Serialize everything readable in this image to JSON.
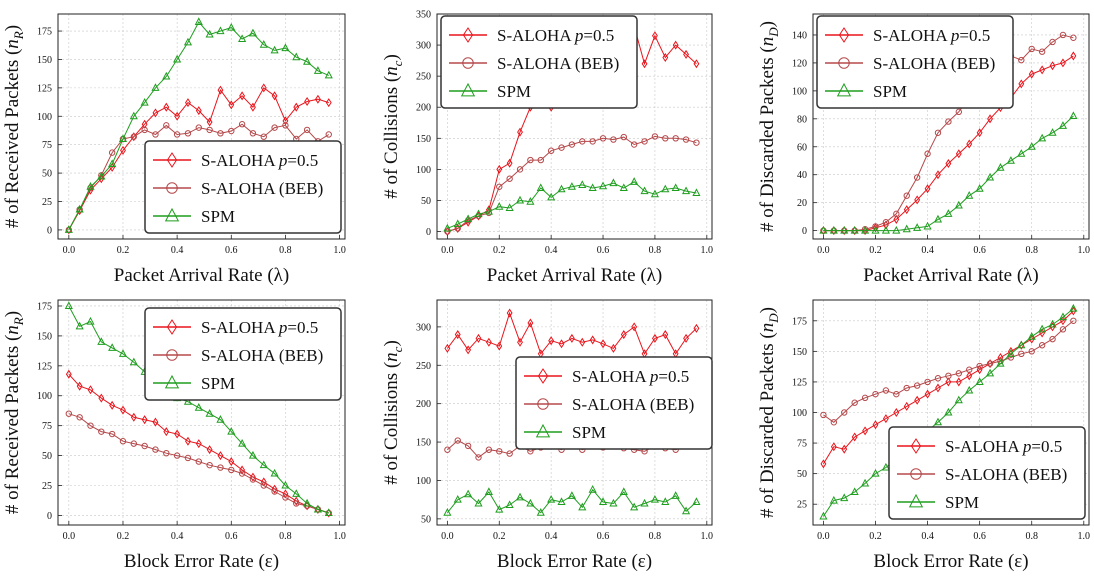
{
  "series_names": [
    "S-ALOHA p=0.5",
    "S-ALOHA (BEB)",
    "SPM"
  ],
  "series_colors": [
    "#e8141b",
    "#b5484a",
    "#1e9e1e"
  ],
  "series_markers": [
    "diamond-icon",
    "circle-icon",
    "triangle-icon"
  ],
  "chart_data": [
    {
      "type": "line",
      "xlabel": "Packet Arrival Rate (λ)",
      "ylabel": "# of Received Packets (n_R)",
      "ylim": [
        -8,
        190
      ],
      "xlim": [
        -0.04,
        1.02
      ],
      "yticks": [
        0,
        25,
        50,
        75,
        100,
        125,
        150,
        175
      ],
      "xticks": [
        0.0,
        0.2,
        0.4,
        0.6,
        0.8,
        1.0
      ],
      "legend": "bottom-right",
      "x": [
        0.0,
        0.04,
        0.08,
        0.12,
        0.16,
        0.2,
        0.24,
        0.28,
        0.32,
        0.36,
        0.4,
        0.44,
        0.48,
        0.52,
        0.56,
        0.6,
        0.64,
        0.68,
        0.72,
        0.76,
        0.8,
        0.84,
        0.88,
        0.92,
        0.96
      ],
      "series": [
        {
          "name": "S-ALOHA p=0.5",
          "values": [
            0,
            17,
            35,
            45,
            55,
            70,
            82,
            93,
            103,
            108,
            100,
            112,
            105,
            95,
            123,
            110,
            118,
            108,
            125,
            118,
            96,
            108,
            113,
            115,
            112
          ]
        },
        {
          "name": "S-ALOHA (BEB)",
          "values": [
            0,
            18,
            37,
            48,
            68,
            80,
            82,
            88,
            84,
            92,
            84,
            85,
            90,
            88,
            85,
            87,
            93,
            85,
            82,
            90,
            92,
            80,
            88,
            78,
            84
          ]
        },
        {
          "name": "SPM",
          "values": [
            0,
            18,
            38,
            47,
            58,
            80,
            100,
            112,
            125,
            135,
            150,
            165,
            183,
            172,
            175,
            178,
            168,
            173,
            163,
            158,
            160,
            152,
            148,
            140,
            136
          ]
        }
      ]
    },
    {
      "type": "line",
      "xlabel": "Packet Arrival Rate (λ)",
      "ylabel": "# of Collisions (n_c)",
      "ylim": [
        -12,
        350
      ],
      "xlim": [
        -0.04,
        1.02
      ],
      "yticks": [
        0,
        50,
        100,
        150,
        200,
        250,
        300,
        350
      ],
      "xticks": [
        0.0,
        0.2,
        0.4,
        0.6,
        0.8,
        1.0
      ],
      "legend": "top-left",
      "x": [
        0.0,
        0.04,
        0.08,
        0.12,
        0.16,
        0.2,
        0.24,
        0.28,
        0.32,
        0.36,
        0.4,
        0.44,
        0.48,
        0.52,
        0.56,
        0.6,
        0.64,
        0.68,
        0.72,
        0.76,
        0.8,
        0.84,
        0.88,
        0.92,
        0.96
      ],
      "series": [
        {
          "name": "S-ALOHA p=0.5",
          "values": [
            0,
            5,
            15,
            25,
            35,
            100,
            110,
            160,
            200,
            205,
            200,
            250,
            280,
            295,
            310,
            320,
            300,
            305,
            330,
            270,
            315,
            280,
            300,
            285,
            270
          ]
        },
        {
          "name": "S-ALOHA (BEB)",
          "values": [
            0,
            5,
            18,
            25,
            30,
            72,
            85,
            100,
            115,
            115,
            130,
            135,
            140,
            145,
            145,
            150,
            148,
            152,
            140,
            145,
            153,
            150,
            150,
            148,
            143
          ]
        },
        {
          "name": "SPM",
          "values": [
            5,
            12,
            20,
            28,
            32,
            40,
            38,
            50,
            48,
            70,
            55,
            68,
            72,
            75,
            70,
            73,
            78,
            70,
            80,
            65,
            60,
            68,
            70,
            65,
            62
          ]
        }
      ]
    },
    {
      "type": "line",
      "xlabel": "Packet Arrival Rate (λ)",
      "ylabel": "# of Discarded Packets (n_D)",
      "ylim": [
        -6,
        155
      ],
      "xlim": [
        -0.04,
        1.02
      ],
      "yticks": [
        0,
        20,
        40,
        60,
        80,
        100,
        120,
        140
      ],
      "xticks": [
        0.0,
        0.2,
        0.4,
        0.6,
        0.8,
        1.0
      ],
      "legend": "top-left",
      "x": [
        0.0,
        0.04,
        0.08,
        0.12,
        0.16,
        0.2,
        0.24,
        0.28,
        0.32,
        0.36,
        0.4,
        0.44,
        0.48,
        0.52,
        0.56,
        0.6,
        0.64,
        0.68,
        0.72,
        0.76,
        0.8,
        0.84,
        0.88,
        0.92,
        0.96
      ],
      "series": [
        {
          "name": "S-ALOHA p=0.5",
          "values": [
            0,
            0,
            0,
            0,
            0,
            2,
            4,
            8,
            15,
            22,
            30,
            40,
            48,
            55,
            62,
            70,
            80,
            88,
            95,
            105,
            112,
            115,
            118,
            120,
            125
          ]
        },
        {
          "name": "S-ALOHA (BEB)",
          "values": [
            0,
            0,
            0,
            0,
            1,
            3,
            6,
            12,
            25,
            38,
            55,
            70,
            78,
            85,
            95,
            108,
            115,
            120,
            125,
            122,
            130,
            128,
            135,
            140,
            138
          ]
        },
        {
          "name": "SPM",
          "values": [
            0,
            0,
            0,
            0,
            0,
            0,
            0,
            0,
            1,
            2,
            3,
            8,
            12,
            18,
            25,
            30,
            38,
            45,
            50,
            55,
            60,
            66,
            70,
            75,
            82
          ]
        }
      ]
    },
    {
      "type": "line",
      "xlabel": "Block Error Rate (ε)",
      "ylabel": "# of Received Packets (n_R)",
      "ylim": [
        -8,
        180
      ],
      "xlim": [
        -0.04,
        1.02
      ],
      "yticks": [
        0,
        25,
        50,
        75,
        100,
        125,
        150,
        175
      ],
      "xticks": [
        0.0,
        0.2,
        0.4,
        0.6,
        0.8,
        1.0
      ],
      "legend": "top-right",
      "x": [
        0.0,
        0.04,
        0.08,
        0.12,
        0.16,
        0.2,
        0.24,
        0.28,
        0.32,
        0.36,
        0.4,
        0.44,
        0.48,
        0.52,
        0.56,
        0.6,
        0.64,
        0.68,
        0.72,
        0.76,
        0.8,
        0.84,
        0.88,
        0.92,
        0.96
      ],
      "series": [
        {
          "name": "S-ALOHA p=0.5",
          "values": [
            118,
            108,
            105,
            98,
            92,
            88,
            82,
            80,
            78,
            70,
            68,
            62,
            60,
            55,
            50,
            45,
            38,
            32,
            28,
            22,
            18,
            12,
            8,
            5,
            2
          ]
        },
        {
          "name": "S-ALOHA (BEB)",
          "values": [
            85,
            82,
            75,
            70,
            68,
            62,
            60,
            58,
            55,
            52,
            50,
            48,
            45,
            42,
            40,
            38,
            35,
            30,
            25,
            20,
            15,
            10,
            8,
            5,
            2
          ]
        },
        {
          "name": "SPM",
          "values": [
            175,
            158,
            162,
            145,
            140,
            135,
            128,
            120,
            112,
            105,
            98,
            95,
            90,
            85,
            80,
            70,
            60,
            50,
            42,
            35,
            25,
            18,
            10,
            5,
            2
          ]
        }
      ]
    },
    {
      "type": "line",
      "xlabel": "Block Error Rate (ε)",
      "ylabel": "# of Collisions (n_c)",
      "ylim": [
        42,
        335
      ],
      "xlim": [
        -0.04,
        1.02
      ],
      "yticks": [
        50,
        100,
        150,
        200,
        250,
        300
      ],
      "xticks": [
        0.0,
        0.2,
        0.4,
        0.6,
        0.8,
        1.0
      ],
      "legend": "center-right",
      "x": [
        0.0,
        0.04,
        0.08,
        0.12,
        0.16,
        0.2,
        0.24,
        0.28,
        0.32,
        0.36,
        0.4,
        0.44,
        0.48,
        0.52,
        0.56,
        0.6,
        0.64,
        0.68,
        0.72,
        0.76,
        0.8,
        0.84,
        0.88,
        0.92,
        0.96
      ],
      "series": [
        {
          "name": "S-ALOHA p=0.5",
          "values": [
            272,
            290,
            270,
            285,
            280,
            275,
            318,
            280,
            305,
            265,
            282,
            278,
            285,
            280,
            283,
            278,
            272,
            290,
            300,
            265,
            285,
            290,
            265,
            285,
            298
          ]
        },
        {
          "name": "S-ALOHA (BEB)",
          "values": [
            140,
            152,
            145,
            130,
            140,
            138,
            135,
            145,
            138,
            143,
            145,
            140,
            148,
            140,
            145,
            143,
            148,
            142,
            140,
            138,
            145,
            142,
            140,
            145,
            150
          ]
        },
        {
          "name": "SPM",
          "values": [
            58,
            75,
            82,
            70,
            85,
            62,
            68,
            78,
            70,
            58,
            75,
            72,
            80,
            65,
            88,
            72,
            70,
            85,
            65,
            70,
            75,
            72,
            80,
            60,
            72
          ]
        }
      ]
    },
    {
      "type": "line",
      "xlabel": "Block Error Rate (ε)",
      "ylabel": "# of Discarded Packets (n_D)",
      "ylim": [
        8,
        192
      ],
      "xlim": [
        -0.04,
        1.02
      ],
      "yticks": [
        25,
        50,
        75,
        100,
        125,
        150,
        175
      ],
      "xticks": [
        0.0,
        0.2,
        0.4,
        0.6,
        0.8,
        1.0
      ],
      "legend": "bottom-right",
      "x": [
        0.0,
        0.04,
        0.08,
        0.12,
        0.16,
        0.2,
        0.24,
        0.28,
        0.32,
        0.36,
        0.4,
        0.44,
        0.48,
        0.52,
        0.56,
        0.6,
        0.64,
        0.68,
        0.72,
        0.76,
        0.8,
        0.84,
        0.88,
        0.92,
        0.96
      ],
      "series": [
        {
          "name": "S-ALOHA p=0.5",
          "values": [
            58,
            72,
            70,
            80,
            85,
            90,
            95,
            100,
            105,
            110,
            115,
            120,
            125,
            125,
            130,
            135,
            140,
            145,
            150,
            155,
            160,
            165,
            170,
            175,
            183
          ]
        },
        {
          "name": "S-ALOHA (BEB)",
          "values": [
            98,
            92,
            100,
            108,
            112,
            115,
            118,
            115,
            120,
            122,
            125,
            128,
            130,
            132,
            135,
            138,
            140,
            142,
            145,
            148,
            150,
            155,
            160,
            168,
            175
          ]
        },
        {
          "name": "SPM",
          "values": [
            15,
            28,
            30,
            35,
            42,
            50,
            55,
            62,
            70,
            78,
            85,
            92,
            100,
            110,
            118,
            125,
            132,
            140,
            148,
            155,
            162,
            168,
            172,
            178,
            185
          ]
        }
      ]
    }
  ]
}
